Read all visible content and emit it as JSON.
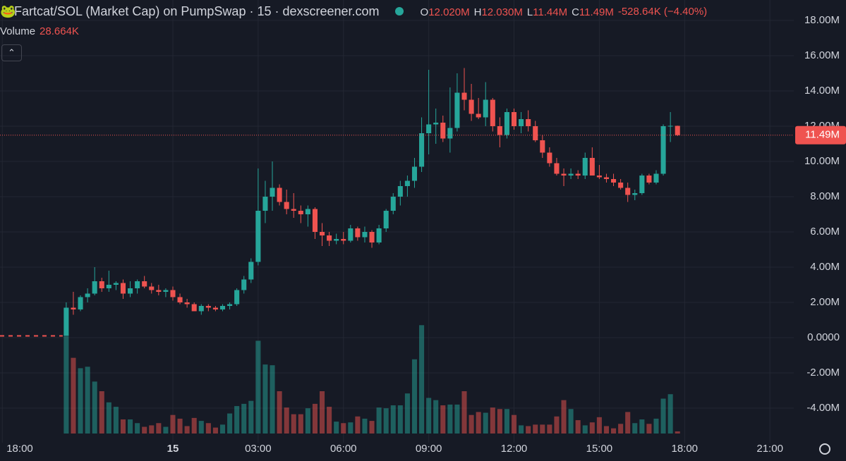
{
  "chart_data": {
    "type": "candlestick",
    "header": {
      "title": "Fartcat/SOL (Market Cap) on PumpSwap · 15 · dexscreener.com",
      "ohlc": [
        {
          "key": "O",
          "value": "12.020M"
        },
        {
          "key": "H",
          "value": "12.030M"
        },
        {
          "key": "L",
          "value": "11.44M"
        },
        {
          "key": "C",
          "value": "11.49M"
        }
      ],
      "change": "-528.64K (−4.40%)"
    },
    "volume_legend": {
      "label": "Volume",
      "value": "28.664K"
    },
    "x": [
      -3.75,
      -3.5,
      -3.25,
      -3,
      -2.75,
      -2.5,
      -2.25,
      -2,
      -1.75,
      -1.5,
      -1.25,
      -1,
      -0.75,
      -0.5,
      -0.25,
      0,
      0.25,
      0.5,
      0.75,
      1,
      1.25,
      1.5,
      1.75,
      2,
      2.25,
      2.5,
      2.75,
      3,
      3.25,
      3.5,
      3.75,
      4,
      4.25,
      4.5,
      4.75,
      5,
      5.25,
      5.5,
      5.75,
      6,
      6.25,
      6.5,
      6.75,
      7,
      7.25,
      7.5,
      7.75,
      8,
      8.25,
      8.5,
      8.75,
      9,
      9.25,
      9.5,
      9.75,
      10,
      10.25,
      10.5,
      10.75,
      11,
      11.25,
      11.5,
      11.75,
      12,
      12.25,
      12.5,
      12.75,
      13,
      13.25,
      13.5,
      13.75,
      14,
      14.25,
      14.5,
      14.75,
      15,
      15.25,
      15.5,
      15.75,
      16,
      16.25,
      16.5,
      16.75,
      17,
      17.25,
      17.5,
      17.75
    ],
    "open": [
      0.1,
      1.7,
      1.6,
      2.3,
      2.5,
      3.2,
      2.8,
      3.0,
      3.1,
      2.5,
      2.8,
      3.2,
      2.9,
      2.7,
      2.6,
      2.7,
      2.3,
      2.0,
      1.9,
      1.5,
      1.8,
      1.7,
      1.6,
      1.8,
      1.9,
      2.7,
      3.3,
      4.3,
      7.2,
      8.0,
      8.5,
      7.7,
      7.3,
      7.2,
      7.0,
      7.3,
      6.0,
      5.8,
      5.5,
      5.6,
      5.5,
      6.2,
      5.7,
      6.0,
      5.4,
      6.2,
      7.2,
      8.0,
      8.6,
      8.9,
      9.7,
      11.6,
      12.1,
      12.2,
      11.3,
      11.9,
      13.9,
      13.5,
      12.7,
      12.5,
      13.5,
      12.0,
      11.5,
      12.8,
      12.0,
      12.4,
      12.0,
      11.2,
      10.5,
      9.9,
      9.3,
      9.2,
      9.3,
      9.2,
      10.2,
      9.2,
      9.1,
      9.0,
      8.8,
      8.5,
      8.1,
      8.2,
      9.2,
      8.8,
      9.3,
      12.0,
      12.02
    ],
    "high": [
      2.0,
      2.6,
      2.4,
      2.8,
      4.0,
      3.4,
      3.8,
      3.2,
      3.3,
      3.2,
      3.3,
      3.5,
      3.1,
      3.0,
      2.8,
      2.9,
      2.5,
      2.2,
      2.0,
      1.9,
      1.9,
      1.8,
      1.9,
      2.0,
      2.8,
      3.5,
      4.5,
      9.6,
      8.9,
      10.0,
      8.7,
      8.4,
      8.2,
      7.5,
      7.5,
      7.4,
      6.5,
      6.0,
      5.9,
      6.0,
      6.4,
      6.3,
      6.3,
      6.1,
      6.4,
      7.3,
      8.2,
      8.9,
      9.2,
      10.2,
      12.5,
      15.2,
      13.0,
      12.6,
      14.2,
      15.0,
      15.3,
      14.4,
      13.6,
      14.5,
      13.6,
      12.5,
      13.0,
      13.0,
      12.8,
      12.9,
      12.3,
      11.5,
      10.8,
      10.2,
      9.6,
      9.6,
      9.5,
      10.5,
      10.8,
      9.8,
      9.3,
      9.3,
      9.0,
      8.8,
      8.4,
      9.3,
      9.3,
      9.5,
      12.1,
      12.8,
      12.03
    ],
    "low": [
      0.1,
      1.3,
      1.5,
      2.0,
      2.4,
      2.6,
      2.6,
      2.7,
      2.2,
      2.3,
      2.5,
      2.8,
      2.5,
      2.4,
      2.3,
      2.1,
      1.9,
      1.7,
      1.5,
      1.3,
      1.5,
      1.5,
      1.5,
      1.6,
      1.8,
      2.5,
      3.1,
      4.1,
      6.5,
      7.2,
      7.5,
      7.0,
      6.8,
      6.5,
      6.3,
      5.6,
      5.2,
      5.2,
      5.3,
      5.3,
      5.4,
      5.5,
      5.4,
      5.1,
      5.3,
      6.0,
      7.0,
      7.5,
      8.0,
      8.5,
      9.4,
      10.4,
      11.0,
      11.1,
      10.5,
      11.7,
      12.9,
      12.3,
      12.4,
      12.0,
      11.7,
      10.8,
      11.3,
      11.8,
      11.6,
      11.7,
      11.1,
      10.2,
      9.7,
      9.2,
      8.6,
      9.0,
      9.0,
      9.0,
      9.2,
      9.0,
      8.8,
      8.6,
      8.4,
      7.7,
      7.8,
      8.1,
      8.7,
      8.7,
      9.2,
      11.1,
      11.44
    ],
    "close": [
      1.7,
      1.6,
      2.3,
      2.5,
      3.2,
      2.8,
      3.0,
      3.1,
      2.5,
      2.8,
      3.2,
      2.9,
      2.7,
      2.6,
      2.7,
      2.3,
      2.0,
      1.9,
      1.5,
      1.8,
      1.7,
      1.6,
      1.8,
      1.9,
      2.7,
      3.3,
      4.3,
      7.2,
      8.0,
      8.5,
      7.7,
      7.3,
      7.2,
      7.0,
      7.3,
      6.0,
      5.8,
      5.5,
      5.6,
      5.5,
      6.2,
      5.7,
      6.0,
      5.4,
      6.2,
      7.2,
      8.0,
      8.6,
      8.9,
      9.7,
      11.6,
      12.1,
      12.2,
      11.3,
      11.9,
      13.9,
      13.5,
      12.7,
      12.5,
      13.5,
      12.0,
      11.5,
      12.8,
      12.0,
      12.4,
      12.0,
      11.2,
      10.5,
      9.9,
      9.3,
      9.2,
      9.3,
      9.2,
      10.2,
      9.2,
      9.1,
      9.0,
      8.8,
      8.5,
      8.1,
      8.2,
      9.2,
      8.8,
      9.3,
      12.0,
      12.02,
      11.49
    ],
    "volume": [
      1310,
      1020,
      880,
      900,
      700,
      570,
      420,
      360,
      190,
      190,
      140,
      90,
      110,
      140,
      90,
      250,
      200,
      100,
      210,
      170,
      140,
      80,
      120,
      270,
      370,
      400,
      440,
      1250,
      930,
      920,
      570,
      350,
      260,
      260,
      340,
      400,
      570,
      360,
      160,
      140,
      150,
      230,
      200,
      170,
      350,
      340,
      380,
      380,
      540,
      1000,
      1460,
      480,
      450,
      380,
      390,
      390,
      570,
      250,
      290,
      280,
      350,
      330,
      330,
      250,
      110,
      100,
      120,
      120,
      120,
      230,
      450,
      330,
      180,
      110,
      150,
      220,
      100,
      70,
      130,
      290,
      140,
      190,
      130,
      200,
      470,
      530,
      28.664
    ],
    "pre_launch_price": 0.1,
    "last_price": {
      "value": 11.49,
      "label": "11.49M"
    },
    "up_color": "#26a69a",
    "down_color": "#ef5350",
    "xlim": [
      -6.08,
      21.84
    ],
    "xticks": [
      {
        "value": -6,
        "label": "18:00"
      },
      {
        "value": 0,
        "label": "15"
      },
      {
        "value": 3,
        "label": "03:00"
      },
      {
        "value": 6,
        "label": "06:00"
      },
      {
        "value": 9,
        "label": "09:00"
      },
      {
        "value": 12,
        "label": "12:00"
      },
      {
        "value": 15,
        "label": "15:00"
      },
      {
        "value": 18,
        "label": "18:00"
      },
      {
        "value": 21,
        "label": "21:00"
      }
    ],
    "ylim": [
      -5.96,
      19.16
    ],
    "yticks": [
      {
        "value": 18,
        "label": "18.00M"
      },
      {
        "value": 16,
        "label": "16.00M"
      },
      {
        "value": 14,
        "label": "14.00M"
      },
      {
        "value": 12,
        "label": "12.00M"
      },
      {
        "value": 10,
        "label": "10.00M"
      },
      {
        "value": 8,
        "label": "8.00M"
      },
      {
        "value": 6,
        "label": "6.00M"
      },
      {
        "value": 4,
        "label": "4.00M"
      },
      {
        "value": 2,
        "label": "2.00M"
      },
      {
        "value": 0,
        "label": "0.0000"
      },
      {
        "value": -2,
        "label": "-2.00M"
      },
      {
        "value": -4,
        "label": "-4.00M"
      }
    ],
    "grid": true
  }
}
